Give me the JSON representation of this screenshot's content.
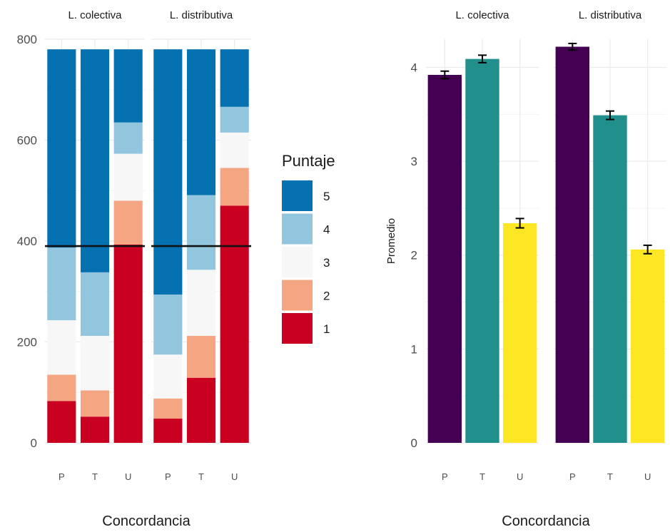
{
  "chart_data": [
    {
      "type": "bar",
      "stacked": true,
      "facets": [
        "L. colectiva",
        "L. distributiva"
      ],
      "categories": [
        "P",
        "T",
        "U"
      ],
      "xlabel": "Concordancia",
      "ylabel": "",
      "ylim": [
        0,
        800
      ],
      "yticks": [
        0,
        200,
        400,
        600,
        800
      ],
      "reference_line": 390,
      "legend": {
        "title": "Puntaje",
        "position": "right",
        "items": [
          {
            "label": "5",
            "color": "#0571b0"
          },
          {
            "label": "4",
            "color": "#92c5de"
          },
          {
            "label": "3",
            "color": "#f7f7f7"
          },
          {
            "label": "2",
            "color": "#f4a582"
          },
          {
            "label": "1",
            "color": "#ca0020"
          }
        ]
      },
      "stack_order": [
        "1",
        "2",
        "3",
        "4",
        "5"
      ],
      "panels": [
        {
          "facet": "L. colectiva",
          "bars": [
            {
              "category": "P",
              "counts": {
                "1": 83,
                "2": 52,
                "3": 108,
                "4": 144,
                "5": 393
              }
            },
            {
              "category": "T",
              "counts": {
                "1": 52,
                "2": 52,
                "3": 108,
                "4": 126,
                "5": 442
              }
            },
            {
              "category": "U",
              "counts": {
                "1": 393,
                "2": 87,
                "3": 93,
                "4": 62,
                "5": 145
              }
            }
          ]
        },
        {
          "facet": "L. distributiva",
          "bars": [
            {
              "category": "P",
              "counts": {
                "1": 48,
                "2": 40,
                "3": 87,
                "4": 119,
                "5": 486
              }
            },
            {
              "category": "T",
              "counts": {
                "1": 129,
                "2": 83,
                "3": 131,
                "4": 148,
                "5": 289
              }
            },
            {
              "category": "U",
              "counts": {
                "1": 470,
                "2": 75,
                "3": 70,
                "4": 51,
                "5": 114
              }
            }
          ]
        }
      ]
    },
    {
      "type": "bar",
      "facets": [
        "L. colectiva",
        "L. distributiva"
      ],
      "categories": [
        "P",
        "T",
        "U"
      ],
      "xlabel": "Concordancia",
      "ylabel": "Promedio",
      "ylim": [
        0,
        4.3
      ],
      "yticks": [
        0,
        1,
        2,
        3,
        4
      ],
      "bar_colors": {
        "P": "#440154",
        "T": "#21908c",
        "U": "#fde725"
      },
      "error_bars": true,
      "panels": [
        {
          "facet": "L. colectiva",
          "bars": [
            {
              "category": "P",
              "value": 3.92,
              "error": 0.04
            },
            {
              "category": "T",
              "value": 4.09,
              "error": 0.04
            },
            {
              "category": "U",
              "value": 2.34,
              "error": 0.05
            }
          ]
        },
        {
          "facet": "L. distributiva",
          "bars": [
            {
              "category": "P",
              "value": 4.22,
              "error": 0.035
            },
            {
              "category": "T",
              "value": 3.49,
              "error": 0.045
            },
            {
              "category": "U",
              "value": 2.06,
              "error": 0.045
            }
          ]
        }
      ]
    }
  ]
}
